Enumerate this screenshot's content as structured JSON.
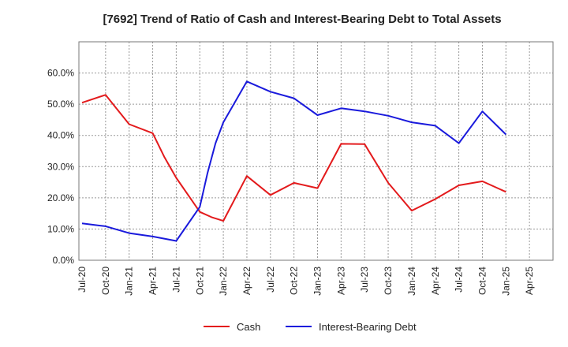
{
  "chart_data": {
    "type": "line",
    "title": "[7692]  Trend of Ratio of Cash and Interest-Bearing Debt to Total Assets",
    "xlabel": "",
    "ylabel": "",
    "ylim": [
      0,
      0.7
    ],
    "y_ticks": [
      "0.0%",
      "10.0%",
      "20.0%",
      "30.0%",
      "40.0%",
      "50.0%",
      "60.0%"
    ],
    "x_ticks": [
      "Jul-20",
      "Oct-20",
      "Jan-21",
      "Apr-21",
      "Jul-21",
      "Oct-21",
      "Jan-22",
      "Apr-22",
      "Jul-22",
      "Oct-22",
      "Jan-23",
      "Apr-23",
      "Jul-23",
      "Oct-23",
      "Jan-24",
      "Apr-24",
      "Jul-24",
      "Oct-24",
      "Jan-25",
      "Apr-25"
    ],
    "grid": true,
    "legend_position": "bottom-center",
    "series": [
      {
        "name": "Cash",
        "color": "#e31a1c",
        "points": [
          [
            0,
            0.505
          ],
          [
            1,
            0.53
          ],
          [
            2,
            0.436
          ],
          [
            3,
            0.407
          ],
          [
            3.5,
            0.33
          ],
          [
            4,
            0.264
          ],
          [
            5,
            0.155
          ],
          [
            5.5,
            0.138
          ],
          [
            6,
            0.126
          ],
          [
            7,
            0.27
          ],
          [
            8,
            0.209
          ],
          [
            9,
            0.248
          ],
          [
            10,
            0.231
          ],
          [
            11,
            0.373
          ],
          [
            12,
            0.372
          ],
          [
            13,
            0.248
          ],
          [
            14,
            0.159
          ],
          [
            15,
            0.196
          ],
          [
            16,
            0.24
          ],
          [
            17,
            0.253
          ],
          [
            18,
            0.219
          ]
        ]
      },
      {
        "name": "Interest-Bearing Debt",
        "color": "#1a1adc",
        "points": [
          [
            0,
            0.118
          ],
          [
            1,
            0.109
          ],
          [
            2,
            0.087
          ],
          [
            3,
            0.076
          ],
          [
            4,
            0.062
          ],
          [
            5,
            0.171
          ],
          [
            5.33,
            0.28
          ],
          [
            5.67,
            0.375
          ],
          [
            6,
            0.442
          ],
          [
            7,
            0.573
          ],
          [
            8,
            0.54
          ],
          [
            9,
            0.519
          ],
          [
            10,
            0.465
          ],
          [
            11,
            0.487
          ],
          [
            12,
            0.477
          ],
          [
            13,
            0.463
          ],
          [
            14,
            0.442
          ],
          [
            15,
            0.431
          ],
          [
            16,
            0.375
          ],
          [
            17,
            0.477
          ],
          [
            18,
            0.403
          ]
        ]
      }
    ]
  }
}
